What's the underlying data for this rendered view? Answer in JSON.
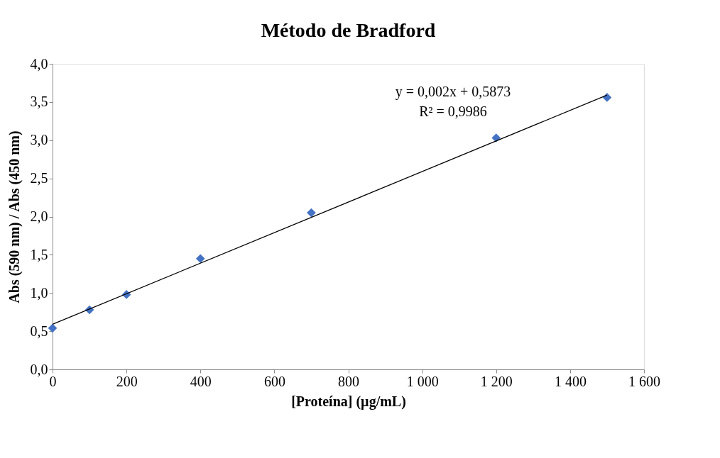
{
  "chart_data": {
    "type": "scatter",
    "title": "Método de Bradford",
    "xlabel": "[Proteína] (µg/mL)",
    "ylabel": "Abs (590 nm) / Abs (450 nm)",
    "x": [
      0,
      100,
      200,
      400,
      700,
      1200,
      1500
    ],
    "series": [
      {
        "color": "#4472c4",
        "marker": "diamond",
        "values": [
          0.54,
          0.78,
          0.98,
          1.45,
          2.05,
          3.03,
          3.56
        ]
      },
      {
        "type": "line",
        "color": "#000000",
        "marker": "none",
        "line_style": "solid",
        "x": [
          0,
          1500
        ],
        "values": [
          0.59,
          3.59
        ]
      }
    ],
    "xlim": [
      0,
      1600
    ],
    "xticks": [
      0,
      200,
      400,
      600,
      800,
      {
        "value": 1000,
        "label": "1 000"
      },
      {
        "value": 1200,
        "label": "1 200"
      },
      {
        "value": 1400,
        "label": "1 400"
      },
      {
        "value": 1600,
        "label": "1 600"
      }
    ],
    "ylim": [
      0,
      4
    ],
    "yticks": [
      {
        "value": 0,
        "label": "0,0"
      },
      {
        "value": 0.5,
        "label": "0,5"
      },
      {
        "value": 1,
        "label": "1,0"
      },
      {
        "value": 1.5,
        "label": "1,5"
      },
      {
        "value": 2,
        "label": "2,0"
      },
      {
        "value": 2.5,
        "label": "2,5"
      },
      {
        "value": 3,
        "label": "3,0"
      },
      {
        "value": 3.5,
        "label": "3,5"
      },
      {
        "value": 4,
        "label": "4,0"
      }
    ],
    "grid": false,
    "annotations": [
      "y = 0,002x + 0,5873",
      "R² = 0,9986"
    ]
  }
}
